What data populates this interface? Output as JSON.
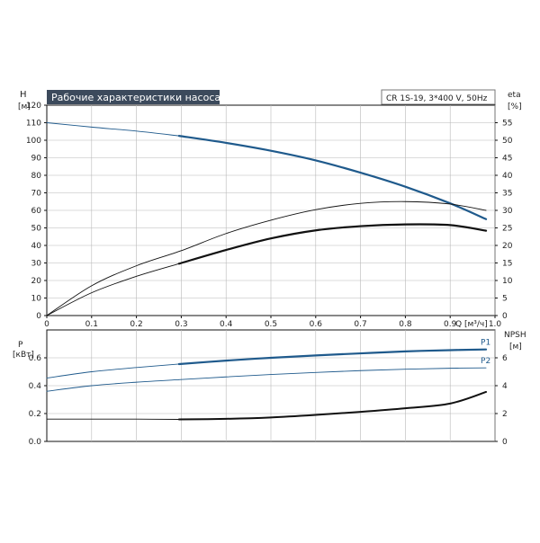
{
  "colors": {
    "blue": "#1f5a8c",
    "black": "#111111",
    "grid": "#b8b8b8",
    "title_bg": "#3c4a5c",
    "title_fg": "#ffffff"
  },
  "chart_data": [
    {
      "type": "line",
      "title": "Рабочие характеристики насоса",
      "subtitle": "CR 1S-19, 3*400 V, 50Hz",
      "xlabel": "Q [м³/ч]",
      "ylabel_left_top": "H",
      "ylabel_left_bottom": "[м]",
      "ylabel_right_top": "eta",
      "ylabel_right_bottom": "[%]",
      "xlim": [
        0,
        1.0
      ],
      "ylim_left": [
        0,
        120
      ],
      "ylim_right": [
        0,
        60
      ],
      "x_ticks": [
        "0",
        "0.1",
        "0.2",
        "0.3",
        "0.4",
        "0.5",
        "0.6",
        "0.7",
        "0.8",
        "0.9",
        "1.0"
      ],
      "y_ticks_left": [
        "0",
        "10",
        "20",
        "30",
        "40",
        "50",
        "60",
        "70",
        "80",
        "90",
        "100",
        "110",
        "120"
      ],
      "y_ticks_right": [
        "0",
        "5",
        "10",
        "15",
        "20",
        "25",
        "30",
        "35",
        "40",
        "45",
        "50",
        "55"
      ],
      "grid": true,
      "series": [
        {
          "name": "",
          "axis": "left",
          "style": "head-thin",
          "x": [
            0,
            0.1,
            0.2,
            0.295
          ],
          "y": [
            110,
            107.5,
            105.2,
            102.5
          ]
        },
        {
          "name": "",
          "axis": "left",
          "style": "head-thick",
          "x": [
            0.295,
            0.4,
            0.5,
            0.6,
            0.7,
            0.8,
            0.9,
            0.98
          ],
          "y": [
            102.5,
            98.5,
            94,
            88.5,
            81.5,
            73.5,
            64,
            55
          ]
        },
        {
          "name": "",
          "axis": "right",
          "style": "eta-thin",
          "x": [
            0,
            0.1,
            0.2,
            0.3,
            0.4,
            0.5,
            0.6,
            0.7,
            0.8,
            0.9,
            0.98
          ],
          "y": [
            0,
            8.5,
            14.2,
            18.5,
            23.4,
            27.2,
            30.2,
            32,
            32.5,
            31.8,
            30
          ]
        },
        {
          "name": "",
          "axis": "right",
          "style": "eta-thick-lead",
          "x": [
            0,
            0.1,
            0.2,
            0.295
          ],
          "y": [
            0,
            6.5,
            11.2,
            14.8
          ]
        },
        {
          "name": "",
          "axis": "right",
          "style": "eta-thick",
          "x": [
            0.295,
            0.4,
            0.5,
            0.6,
            0.7,
            0.8,
            0.9,
            0.98
          ],
          "y": [
            14.8,
            18.7,
            22,
            24.3,
            25.5,
            26,
            25.8,
            24.2
          ]
        }
      ]
    },
    {
      "type": "line",
      "ylabel_left_top": "P",
      "ylabel_left_bottom": "[кВт]",
      "ylabel_right_top": "NPSH",
      "ylabel_right_bottom": "[м]",
      "xlim": [
        0,
        1.0
      ],
      "ylim_left": [
        0,
        0.8
      ],
      "ylim_right": [
        0,
        8
      ],
      "y_ticks_left": [
        "0.0",
        "0.2",
        "0.4",
        "0.6"
      ],
      "y_ticks_right": [
        "0",
        "2",
        "4",
        "6"
      ],
      "grid": true,
      "series": [
        {
          "name": "",
          "axis": "left",
          "style": "p1-thin",
          "x": [
            0,
            0.1,
            0.2,
            0.295
          ],
          "y": [
            0.455,
            0.5,
            0.53,
            0.555
          ]
        },
        {
          "name": "P1",
          "axis": "left",
          "style": "p1-thick",
          "x": [
            0.295,
            0.4,
            0.5,
            0.6,
            0.7,
            0.8,
            0.9,
            0.98
          ],
          "y": [
            0.555,
            0.58,
            0.6,
            0.617,
            0.632,
            0.646,
            0.655,
            0.66
          ]
        },
        {
          "name": "",
          "axis": "left",
          "style": "p2-thin",
          "x": [
            0,
            0.1,
            0.2,
            0.295
          ],
          "y": [
            0.36,
            0.4,
            0.425,
            0.443
          ]
        },
        {
          "name": "P2",
          "axis": "left",
          "style": "p2-thin",
          "x": [
            0.295,
            0.4,
            0.5,
            0.6,
            0.7,
            0.8,
            0.9,
            0.98
          ],
          "y": [
            0.443,
            0.463,
            0.48,
            0.495,
            0.508,
            0.518,
            0.525,
            0.528
          ]
        },
        {
          "name": "",
          "axis": "right",
          "style": "npsh-thin",
          "x": [
            0,
            0.1,
            0.2,
            0.295
          ],
          "y": [
            1.6,
            1.6,
            1.6,
            1.58
          ]
        },
        {
          "name": "",
          "axis": "right",
          "style": "npsh-thick",
          "x": [
            0.295,
            0.4,
            0.5,
            0.6,
            0.7,
            0.8,
            0.9,
            0.98
          ],
          "y": [
            1.58,
            1.62,
            1.72,
            1.9,
            2.12,
            2.38,
            2.72,
            3.55
          ]
        }
      ]
    }
  ]
}
